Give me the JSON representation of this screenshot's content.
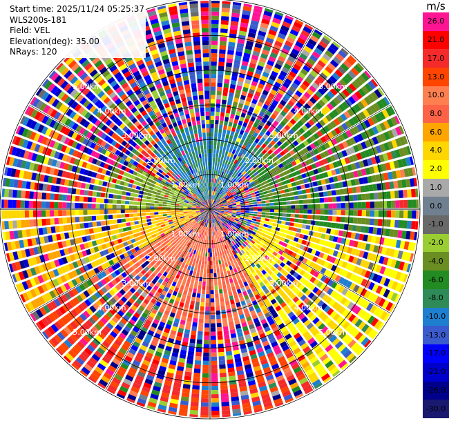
{
  "header": {
    "start_time": "Start time: 2025/11/24 05:25:37",
    "device": "WLS200s-181",
    "field": "Field: VEL",
    "elevation": "Elevation(deg): 35.00",
    "nrays": "NRays: 120"
  },
  "colorbar": {
    "unit": "m/s",
    "ticks": [
      "26.0",
      "21.0",
      "17.0",
      "13.0",
      "10.0",
      "8.0",
      "6.0",
      "4.0",
      "2.0",
      "1.0",
      "0.0",
      "-1.0",
      "-2.0",
      "-4.0",
      "-6.0",
      "-8.0",
      "-10.0",
      "-13.0",
      "-17.0",
      "-21.0",
      "-26.0",
      "-30.0"
    ],
    "segments": [
      {
        "label": "26.0",
        "color": "#FF1493"
      },
      {
        "label": "21.0",
        "color": "#FF0000"
      },
      {
        "label": "17.0",
        "color": "#F52A2A"
      },
      {
        "label": "13.0",
        "color": "#FF4500"
      },
      {
        "label": "10.0",
        "color": "#FF7F50"
      },
      {
        "label": "8.0",
        "color": "#FF6347"
      },
      {
        "label": "6.0",
        "color": "#FFA500"
      },
      {
        "label": "4.0",
        "color": "#FFD700"
      },
      {
        "label": "2.0",
        "color": "#FFFF00"
      },
      {
        "label": "1.0",
        "color": "#A9A9A9"
      },
      {
        "label": "0.0",
        "color": "#708090"
      },
      {
        "label": "-1.0",
        "color": "#696969"
      },
      {
        "label": "-2.0",
        "color": "#9ACD32"
      },
      {
        "label": "-4.0",
        "color": "#6B8E23"
      },
      {
        "label": "-6.0",
        "color": "#228B22"
      },
      {
        "label": "-8.0",
        "color": "#2E8B57"
      },
      {
        "label": "-10.0",
        "color": "#1E7FD0"
      },
      {
        "label": "-13.0",
        "color": "#3A5BCD"
      },
      {
        "label": "-17.0",
        "color": "#0000FF"
      },
      {
        "label": "-21.0",
        "color": "#0000CD"
      },
      {
        "label": "-26.0",
        "color": "#00008B"
      },
      {
        "label": "-30.0",
        "color": "#191970"
      }
    ]
  },
  "chart_data": {
    "type": "ppi",
    "field": "VEL",
    "units": "m/s",
    "elevation_deg": 35.0,
    "n_rays": 120,
    "max_range_km": 6.0,
    "range_rings_km": [
      1.0,
      2.0,
      3.0,
      4.0,
      5.0
    ],
    "ring_labels": [
      "1.00km",
      "2.00km",
      "3.00km",
      "4.00km",
      "5.00km"
    ],
    "velocity_range": [
      -30.0,
      26.0
    ],
    "dominant_sectors": [
      {
        "azimuth_deg": [
          315,
          45
        ],
        "range_km": [
          0.3,
          2.5
        ],
        "velocity": -10.0
      },
      {
        "azimuth_deg": [
          45,
          100
        ],
        "range_km": [
          1.5,
          6.0
        ],
        "velocity": -6.0
      },
      {
        "azimuth_deg": [
          270,
          300
        ],
        "range_km": [
          0.5,
          3.0
        ],
        "velocity": -4.0
      },
      {
        "azimuth_deg": [
          95,
          150
        ],
        "range_km": [
          1.5,
          6.0
        ],
        "velocity": 2.0
      },
      {
        "azimuth_deg": [
          150,
          240
        ],
        "range_km": [
          0.5,
          3.5
        ],
        "velocity": 8.0
      },
      {
        "azimuth_deg": [
          150,
          240
        ],
        "range_km": [
          4.5,
          6.0
        ],
        "velocity": 13.0
      },
      {
        "azimuth_deg": [
          240,
          270
        ],
        "range_km": [
          0.3,
          6.0
        ],
        "velocity": 4.0
      },
      {
        "azimuth_deg": [
          0,
          360
        ],
        "range_km": [
          2.5,
          4.5
        ],
        "velocity": null
      }
    ]
  }
}
